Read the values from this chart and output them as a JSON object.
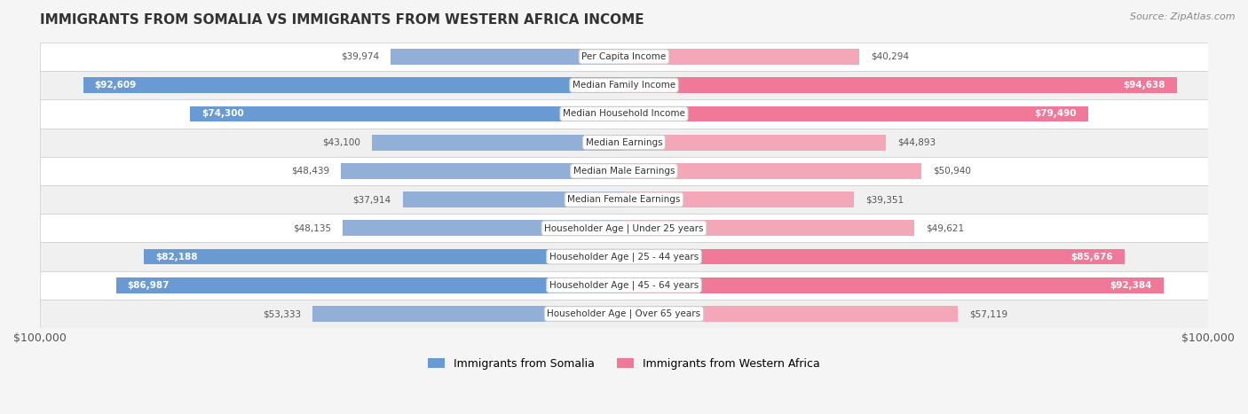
{
  "title": "IMMIGRANTS FROM SOMALIA VS IMMIGRANTS FROM WESTERN AFRICA INCOME",
  "source": "Source: ZipAtlas.com",
  "categories": [
    "Per Capita Income",
    "Median Family Income",
    "Median Household Income",
    "Median Earnings",
    "Median Male Earnings",
    "Median Female Earnings",
    "Householder Age | Under 25 years",
    "Householder Age | 25 - 44 years",
    "Householder Age | 45 - 64 years",
    "Householder Age | Over 65 years"
  ],
  "somalia_values": [
    39974,
    92609,
    74300,
    43100,
    48439,
    37914,
    48135,
    82188,
    86987,
    53333
  ],
  "western_africa_values": [
    40294,
    94638,
    79490,
    44893,
    50940,
    39351,
    49621,
    85676,
    92384,
    57119
  ],
  "somalia_labels": [
    "$39,974",
    "$92,609",
    "$74,300",
    "$43,100",
    "$48,439",
    "$37,914",
    "$48,135",
    "$82,188",
    "$86,987",
    "$53,333"
  ],
  "western_africa_labels": [
    "$40,294",
    "$94,638",
    "$79,490",
    "$44,893",
    "$50,940",
    "$39,351",
    "$49,621",
    "$85,676",
    "$92,384",
    "$57,119"
  ],
  "somalia_color": "#92afd7",
  "somalia_color_dark": "#6a9ad4",
  "western_africa_color": "#f4a7b9",
  "western_africa_color_dark": "#f07898",
  "max_value": 100000,
  "background_color": "#f5f5f5",
  "row_bg_light": "#f9f9f9",
  "row_bg_dark": "#eeeeee",
  "legend_somalia": "Immigrants from Somalia",
  "legend_western_africa": "Immigrants from Western Africa"
}
